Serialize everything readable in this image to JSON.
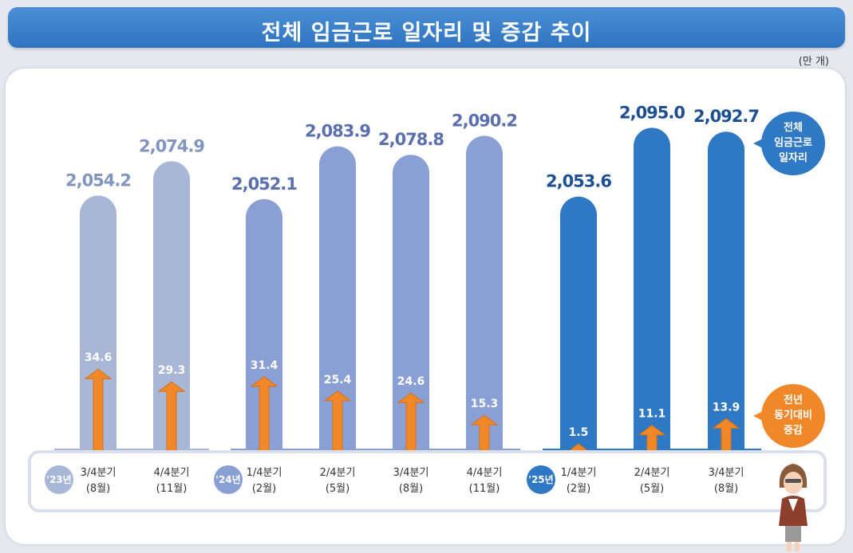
{
  "title": "전체 임금근로 일자리 및 증감 추이",
  "unit": "(만 개)",
  "legend": {
    "total_lines": [
      "전체",
      "임금근로",
      "일자리"
    ],
    "change_lines": [
      "전년",
      "동기대비",
      "증감"
    ]
  },
  "year_labels": [
    "'23년",
    "'24년",
    "'25년"
  ],
  "colors": {
    "title_bar": "#2f74c0",
    "bar_2023": "#a8b7d5",
    "bar_2024": "#8a9fd4",
    "bar_2025": "#2f78c4",
    "value_2023": "#8295bf",
    "value_2024": "#5b6fae",
    "value_2025": "#1e4f93",
    "arrow": "#f0882a",
    "legend_total": "#2f78c4",
    "legend_change": "#f0882a"
  },
  "chart_data": {
    "type": "bar",
    "title": "전체 임금근로 일자리 및 증감 추이",
    "unit": "(만 개)",
    "categories": [
      {
        "quarter": "3/4분기",
        "month": "(8월)",
        "year": "'23년"
      },
      {
        "quarter": "4/4분기",
        "month": "(11월)",
        "year": "'23년"
      },
      {
        "quarter": "1/4분기",
        "month": "(2월)",
        "year": "'24년"
      },
      {
        "quarter": "2/4분기",
        "month": "(5월)",
        "year": "'24년"
      },
      {
        "quarter": "3/4분기",
        "month": "(8월)",
        "year": "'24년"
      },
      {
        "quarter": "4/4분기",
        "month": "(11월)",
        "year": "'24년"
      },
      {
        "quarter": "1/4분기",
        "month": "(2월)",
        "year": "'25년"
      },
      {
        "quarter": "2/4분기",
        "month": "(5월)",
        "year": "'25년"
      },
      {
        "quarter": "3/4분기",
        "month": "(8월)",
        "year": "'25년"
      }
    ],
    "series": [
      {
        "name": "전체 임금근로 일자리",
        "values": [
          2054.2,
          2074.9,
          2052.1,
          2083.9,
          2078.8,
          2090.2,
          2053.6,
          2095.0,
          2092.7
        ],
        "labels": [
          "2,054.2",
          "2,074.9",
          "2,052.1",
          "2,083.9",
          "2,078.8",
          "2,090.2",
          "2,053.6",
          "2,095.0",
          "2,092.7"
        ]
      },
      {
        "name": "전년 동기대비 증감",
        "values": [
          34.6,
          29.3,
          31.4,
          25.4,
          24.6,
          15.3,
          1.5,
          11.1,
          13.9
        ],
        "labels": [
          "34.6",
          "29.3",
          "31.4",
          "25.4",
          "24.6",
          "15.3",
          "1.5",
          "11.1",
          "13.9"
        ]
      }
    ],
    "legend_position": "right",
    "grid": false
  }
}
